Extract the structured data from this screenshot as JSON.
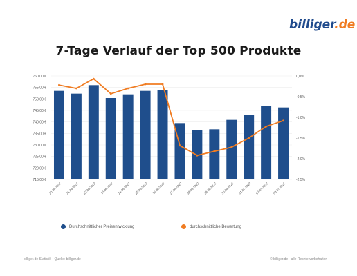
{
  "logo": {
    "part1": "billiger",
    "part2": ".de"
  },
  "chart_data": {
    "type": "bar",
    "title": "7-Tage Verlauf der Top 500 Produkte",
    "categories": [
      "20.06.2022",
      "21.06.2022",
      "22.06.2022",
      "23.06.2022",
      "24.06.2022",
      "25.06.2022",
      "26.06.2022",
      "27.06.2022",
      "28.06.2022",
      "29.06.2022",
      "30.06.2022",
      "01.07.2022",
      "02.07.2022",
      "03.07.2022"
    ],
    "y_left": {
      "ticks": [
        "715,00 €",
        "720,00 €",
        "725,00 €",
        "730,00 €",
        "735,00 €",
        "740,00 €",
        "745,00 €",
        "750,00 €",
        "755,00 €",
        "760,00 €"
      ],
      "min": 715,
      "max": 760
    },
    "y_right": {
      "ticks": [
        "-2,5%",
        "-2,0%",
        "-1,5%",
        "-1,0%",
        "-0,5%",
        "0,0%"
      ],
      "min": -2.5,
      "max": 0.0
    },
    "series": [
      {
        "name": "Durchschnittlicher Preisentwicklung",
        "axis": "left",
        "type": "bar",
        "values": [
          753.5,
          752.3,
          756.0,
          750.4,
          752.0,
          753.5,
          753.8,
          739.5,
          736.6,
          736.8,
          740.9,
          743.0,
          746.9,
          746.3
        ]
      },
      {
        "name": "durchschnittliche Bewertung",
        "axis": "right",
        "type": "line",
        "values": [
          -0.22,
          -0.3,
          -0.07,
          -0.43,
          -0.3,
          -0.2,
          -0.2,
          -1.68,
          -1.92,
          -1.82,
          -1.72,
          -1.5,
          -1.22,
          -1.08
        ]
      }
    ],
    "legend_position": "bottom",
    "colors": {
      "bar": "#1f4e8c",
      "line": "#f07c22"
    }
  },
  "footer": {
    "left": "billiger.de Statistik · Quelle: billiger.de",
    "right": "© billiger.de · alle Rechte vorbehalten"
  }
}
